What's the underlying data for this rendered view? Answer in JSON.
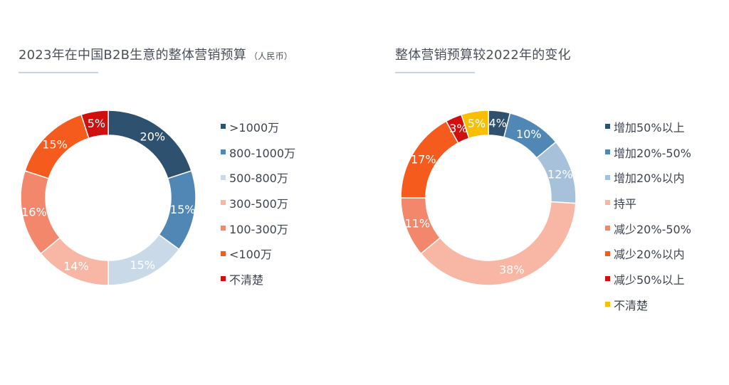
{
  "charts": [
    {
      "title": "2023年在中国B2B生意的整体营销预算",
      "unit": "（人民币）"
    },
    {
      "title": "整体营销预算较2022年的变化",
      "unit": ""
    }
  ],
  "chart_data": [
    {
      "type": "pie",
      "variant": "donut",
      "title": "2023年在中国B2B生意的整体营销预算",
      "subtitle": "（人民币）",
      "legend_position": "right",
      "slices": [
        {
          "label": ">1000万",
          "value": 20,
          "color": "#2f5170",
          "label_text": "20%",
          "text_color": "#ffffff"
        },
        {
          "label": "800-1000万",
          "value": 15,
          "color": "#5187b5",
          "label_text": "15%",
          "text_color": "#ffffff"
        },
        {
          "label": "500-800万",
          "value": 15,
          "color": "#c9d9e8",
          "label_text": "15%",
          "text_color": "#ffffff"
        },
        {
          "label": "300-500万",
          "value": 14,
          "color": "#f8b6a4",
          "label_text": "14%",
          "text_color": "#ffffff"
        },
        {
          "label": "100-300万",
          "value": 16,
          "color": "#f3876c",
          "label_text": "16%",
          "text_color": "#ffffff"
        },
        {
          "label": "<100万",
          "value": 15,
          "color": "#f45b1c",
          "label_text": "15%",
          "text_color": "#ffffff"
        },
        {
          "label": "不清楚",
          "value": 5,
          "color": "#d00f0f",
          "label_text": "5%",
          "text_color": "#ffffff"
        }
      ]
    },
    {
      "type": "pie",
      "variant": "donut",
      "title": "整体营销预算较2022年的变化",
      "legend_position": "right",
      "slices": [
        {
          "label": "增加50%以上",
          "value": 4,
          "color": "#2f5170",
          "label_text": "4%",
          "text_color": "#ffffff"
        },
        {
          "label": "增加20%-50%",
          "value": 10,
          "color": "#5187b5",
          "label_text": "10%",
          "text_color": "#ffffff"
        },
        {
          "label": "增加20%以内",
          "value": 12,
          "color": "#a8c1da",
          "label_text": "12%",
          "text_color": "#ffffff"
        },
        {
          "label": "持平",
          "value": 38,
          "color": "#f8b6a4",
          "label_text": "38%",
          "text_color": "#ffffff"
        },
        {
          "label": "减少20%-50%",
          "value": 11,
          "color": "#f3876c",
          "label_text": "11%",
          "text_color": "#ffffff"
        },
        {
          "label": "减少20%以内",
          "value": 17,
          "color": "#f45b1c",
          "label_text": "17%",
          "text_color": "#ffffff"
        },
        {
          "label": "减少50%以上",
          "value": 3,
          "color": "#d00f0f",
          "label_text": "3%",
          "text_color": "#ffffff"
        },
        {
          "label": "不清楚",
          "value": 5,
          "color": "#f7bf00",
          "label_text": "5%",
          "text_color": "#ffffff"
        }
      ]
    }
  ]
}
